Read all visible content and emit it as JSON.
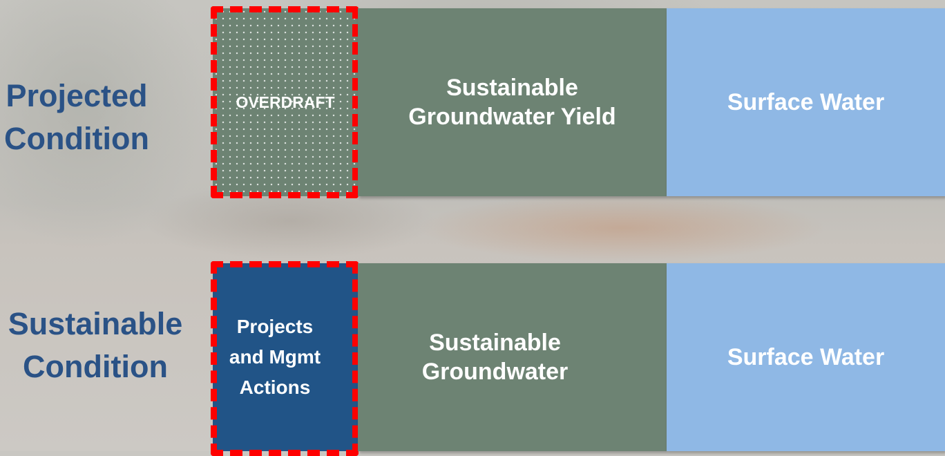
{
  "rows": [
    {
      "label_line1": "Projected",
      "label_line2": "Condition",
      "first_box_text": "OVERDRAFT",
      "middle_line1": "Sustainable",
      "middle_line2": "Groundwater Yield",
      "right_text": "Surface Water"
    },
    {
      "label_line1": "Sustainable",
      "label_line2": "Condition",
      "first_line1": "Projects",
      "first_line2": "and Mgmt",
      "first_line3": "Actions",
      "middle_line1": "Sustainable",
      "middle_line2": "Groundwater",
      "right_text": "Surface Water"
    }
  ],
  "colors": {
    "label": "#2a5286",
    "groundwater": "#6d8373",
    "surface_water": "#8fb8e5",
    "projects": "#215487",
    "dashed_outline": "#ff0000"
  }
}
